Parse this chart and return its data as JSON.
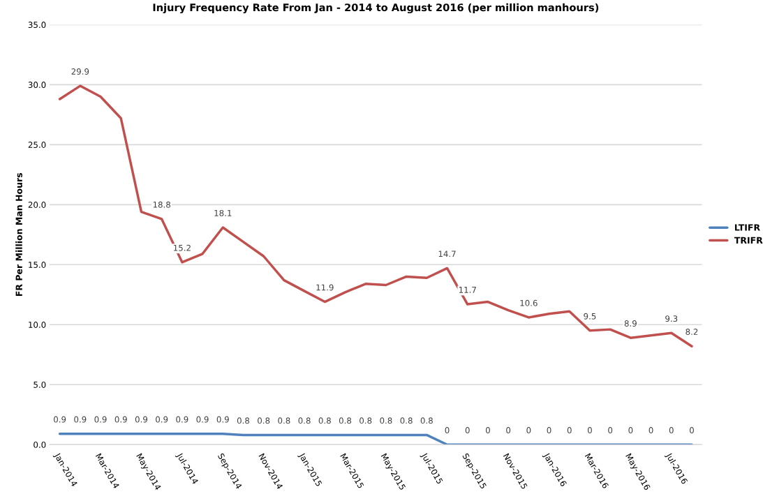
{
  "chart_data": {
    "type": "line",
    "title": "Injury Frequency Rate From Jan - 2014 to August 2016 (per million manhours)",
    "ylabel": "FR Per Million Man Hours",
    "categories": [
      "Jan-2014",
      null,
      "Mar-2014",
      null,
      "May-2014",
      null,
      "Jul-2014",
      null,
      "Sep-2014",
      null,
      "Nov-2014",
      null,
      "Jan-2015",
      null,
      "Mar-2015",
      null,
      "May-2015",
      null,
      "Jul-2015",
      null,
      "Sep-2015",
      null,
      "Nov-2015",
      null,
      "Jan-2016",
      null,
      "Mar-2016",
      null,
      "May-2016",
      null,
      "Jul-2016",
      null
    ],
    "series": [
      {
        "name": "LTIFR",
        "color": "#4f81bd",
        "values": [
          0.9,
          0.9,
          0.9,
          0.9,
          0.9,
          0.9,
          0.9,
          0.9,
          0.9,
          0.8,
          0.8,
          0.8,
          0.8,
          0.8,
          0.8,
          0.8,
          0.8,
          0.8,
          0.8,
          0,
          0,
          0,
          0,
          0,
          0,
          0,
          0,
          0,
          0,
          0,
          0,
          0
        ],
        "value_labels": [
          "0.9",
          "0.9",
          "0.9",
          "0.9",
          "0.9",
          "0.9",
          "0.9",
          "0.9",
          "0.9",
          "0.8",
          "0.8",
          "0.8",
          "0.8",
          "0.8",
          "0.8",
          "0.8",
          "0.8",
          "0.8",
          "0.8",
          "0",
          "0",
          "0",
          "0",
          "0",
          "0",
          "0",
          "0",
          "0",
          "0",
          "0",
          "0",
          "0"
        ]
      },
      {
        "name": "TRIFR",
        "color": "#c0504d",
        "values": [
          28.8,
          29.9,
          29.0,
          27.2,
          19.4,
          18.8,
          15.2,
          15.9,
          18.1,
          16.9,
          15.7,
          13.7,
          12.8,
          11.9,
          12.7,
          13.4,
          13.3,
          14.0,
          13.9,
          14.7,
          11.7,
          11.9,
          11.2,
          10.6,
          10.9,
          11.1,
          9.5,
          9.6,
          8.9,
          9.1,
          9.3,
          8.2
        ],
        "value_labels": [
          null,
          "29.9",
          null,
          null,
          null,
          "18.8",
          "15.2",
          null,
          "18.1",
          null,
          null,
          null,
          null,
          "11.9",
          null,
          null,
          null,
          null,
          null,
          "14.7",
          "11.7",
          null,
          null,
          "10.6",
          null,
          null,
          "9.5",
          null,
          "8.9",
          null,
          "9.3",
          "8.2"
        ]
      }
    ],
    "ylim": [
      0,
      35
    ],
    "yticks": [
      {
        "value": 0,
        "label": "0.0"
      },
      {
        "value": 5,
        "label": "5.0"
      },
      {
        "value": 10,
        "label": "10.0"
      },
      {
        "value": 15,
        "label": "15.0"
      },
      {
        "value": 20,
        "label": "20.0"
      },
      {
        "value": 25,
        "label": "25.0"
      },
      {
        "value": 30,
        "label": "30.0"
      },
      {
        "value": 35,
        "label": "35.0"
      }
    ],
    "grid": "y",
    "legend": "right",
    "marker": "none",
    "line_style": "solid"
  }
}
